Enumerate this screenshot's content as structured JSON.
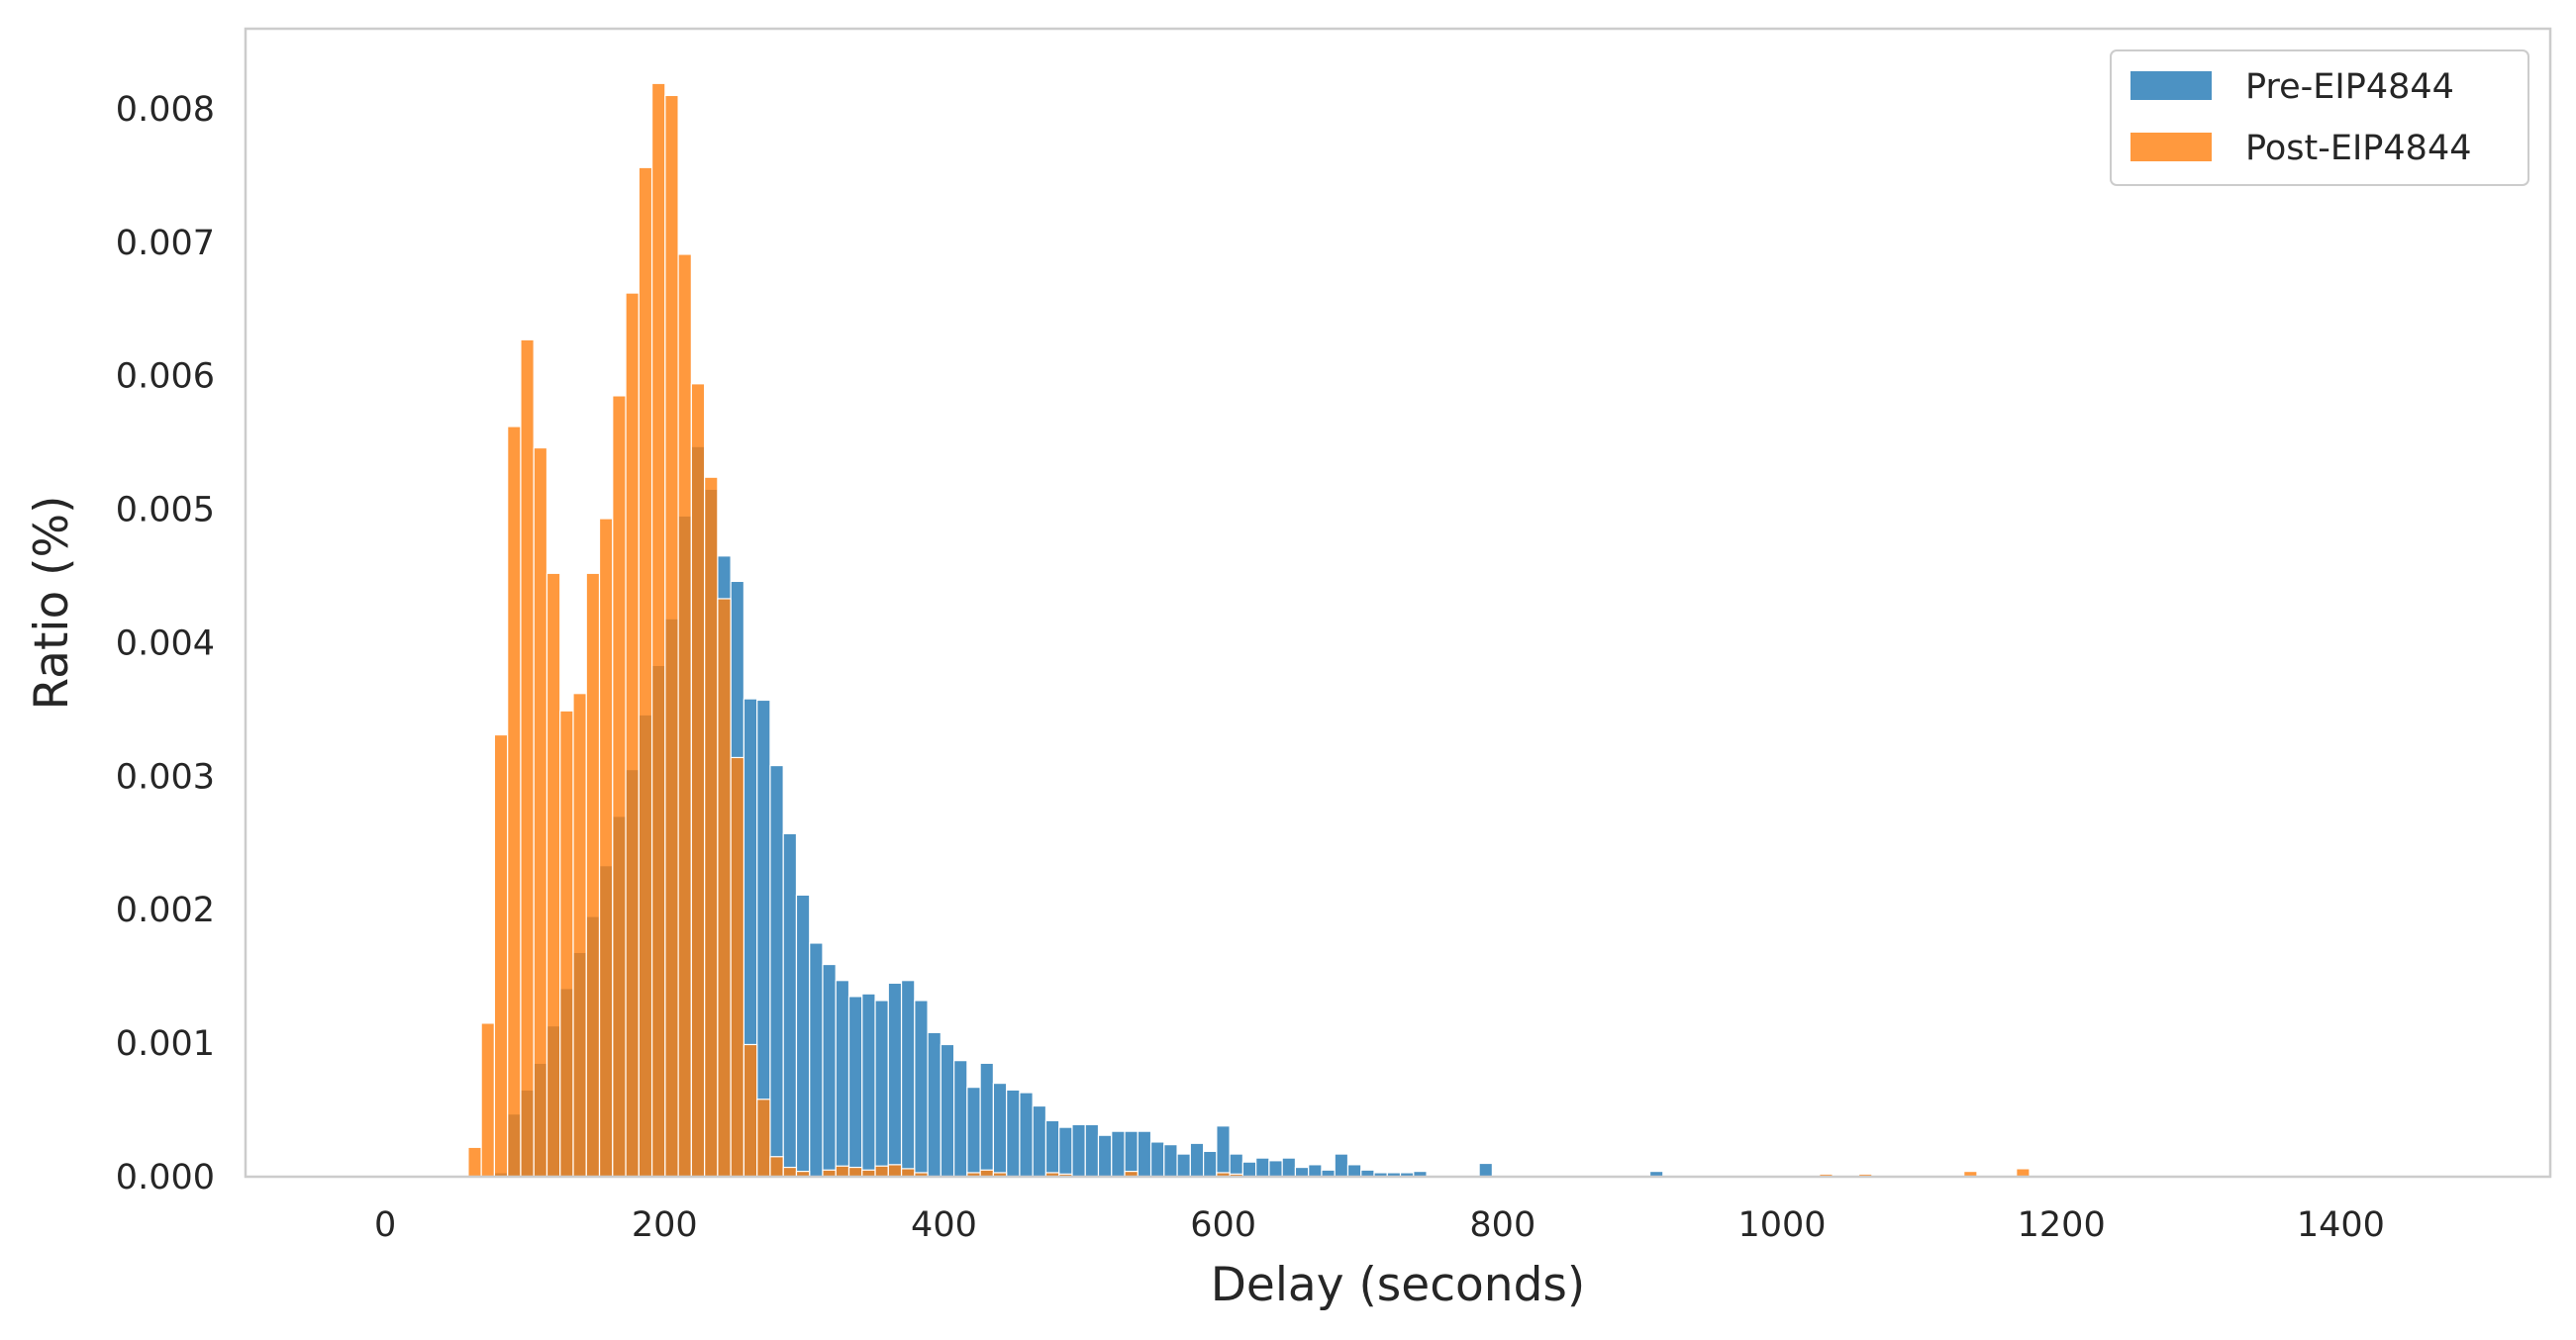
{
  "chart_data": {
    "type": "bar",
    "subtype": "overlapping-histogram",
    "xlabel": "Delay (seconds)",
    "ylabel": "Ratio (%)",
    "xlim": [
      -100,
      1550
    ],
    "ylim": [
      0,
      0.0086
    ],
    "xticks": [
      0,
      200,
      400,
      600,
      800,
      1000,
      1200,
      1400
    ],
    "yticks": [
      0.0,
      0.001,
      0.002,
      0.003,
      0.004,
      0.005,
      0.006,
      0.007,
      0.008
    ],
    "ytick_labels": [
      "0.000",
      "0.001",
      "0.002",
      "0.003",
      "0.004",
      "0.005",
      "0.006",
      "0.007",
      "0.008"
    ],
    "grid": false,
    "legend_position": "top-right",
    "bin_width": 9.4,
    "series": [
      {
        "name": "Pre-EIP4844",
        "color": "#1f77b4",
        "opacity": 0.8,
        "bins": [
          [
            78.2,
            3e-05
          ],
          [
            87.6,
            0.00047
          ],
          [
            97.0,
            0.00065
          ],
          [
            106.4,
            0.00085
          ],
          [
            115.8,
            0.00113
          ],
          [
            125.2,
            0.00141
          ],
          [
            134.6,
            0.00168
          ],
          [
            144.0,
            0.00195
          ],
          [
            153.4,
            0.00233
          ],
          [
            162.8,
            0.0027
          ],
          [
            172.2,
            0.00305
          ],
          [
            181.6,
            0.00346
          ],
          [
            191.0,
            0.00383
          ],
          [
            200.4,
            0.00418
          ],
          [
            209.8,
            0.00495
          ],
          [
            219.2,
            0.00547
          ],
          [
            228.6,
            0.00515
          ],
          [
            238.0,
            0.00465
          ],
          [
            247.4,
            0.00446
          ],
          [
            256.8,
            0.00358
          ],
          [
            266.2,
            0.00357
          ],
          [
            275.6,
            0.00308
          ],
          [
            285.0,
            0.00257
          ],
          [
            294.4,
            0.00211
          ],
          [
            303.8,
            0.00175
          ],
          [
            313.2,
            0.00159
          ],
          [
            322.6,
            0.00147
          ],
          [
            332.0,
            0.00135
          ],
          [
            341.4,
            0.00137
          ],
          [
            350.8,
            0.00132
          ],
          [
            360.2,
            0.00145
          ],
          [
            369.6,
            0.00147
          ],
          [
            379.0,
            0.00132
          ],
          [
            388.4,
            0.00108
          ],
          [
            397.8,
            0.00099
          ],
          [
            407.2,
            0.00087
          ],
          [
            416.6,
            0.00067
          ],
          [
            426.0,
            0.00085
          ],
          [
            435.4,
            0.0007
          ],
          [
            444.8,
            0.00065
          ],
          [
            454.2,
            0.00063
          ],
          [
            463.6,
            0.00053
          ],
          [
            473.0,
            0.00042
          ],
          [
            482.4,
            0.00037
          ],
          [
            491.8,
            0.00039
          ],
          [
            501.2,
            0.00039
          ],
          [
            510.6,
            0.00031
          ],
          [
            520.0,
            0.00034
          ],
          [
            529.4,
            0.00034
          ],
          [
            538.8,
            0.00034
          ],
          [
            548.2,
            0.00026
          ],
          [
            557.6,
            0.00024
          ],
          [
            567.0,
            0.00017
          ],
          [
            576.4,
            0.00025
          ],
          [
            585.8,
            0.00019
          ],
          [
            595.2,
            0.00038
          ],
          [
            604.6,
            0.00017
          ],
          [
            614.0,
            0.00011
          ],
          [
            623.4,
            0.00014
          ],
          [
            632.8,
            0.00012
          ],
          [
            642.2,
            0.00014
          ],
          [
            651.6,
            7e-05
          ],
          [
            661.0,
            9e-05
          ],
          [
            670.4,
            5e-05
          ],
          [
            679.8,
            0.00017
          ],
          [
            689.2,
            9e-05
          ],
          [
            698.6,
            5e-05
          ],
          [
            708.0,
            3e-05
          ],
          [
            717.4,
            3e-05
          ],
          [
            726.8,
            3e-05
          ],
          [
            736.2,
            4e-05
          ],
          [
            783.2,
            0.0001
          ],
          [
            905.4,
            4e-05
          ]
        ]
      },
      {
        "name": "Post-EIP4844",
        "color": "#ff7f0e",
        "opacity": 0.8,
        "bins": [
          [
            59.4,
            0.00022
          ],
          [
            68.8,
            0.00115
          ],
          [
            78.2,
            0.00331
          ],
          [
            87.6,
            0.00562
          ],
          [
            97.0,
            0.00627
          ],
          [
            106.4,
            0.00546
          ],
          [
            115.8,
            0.00452
          ],
          [
            125.2,
            0.00349
          ],
          [
            134.6,
            0.00362
          ],
          [
            144.0,
            0.00452
          ],
          [
            153.4,
            0.00493
          ],
          [
            162.8,
            0.00585
          ],
          [
            172.2,
            0.00662
          ],
          [
            181.6,
            0.00756
          ],
          [
            191.0,
            0.00819
          ],
          [
            200.4,
            0.0081
          ],
          [
            209.8,
            0.00691
          ],
          [
            219.2,
            0.00594
          ],
          [
            228.6,
            0.00524
          ],
          [
            238.0,
            0.00433
          ],
          [
            247.4,
            0.00314
          ],
          [
            256.8,
            0.00099
          ],
          [
            266.2,
            0.00058
          ],
          [
            275.6,
            0.00015
          ],
          [
            285.0,
            7e-05
          ],
          [
            294.4,
            4e-05
          ],
          [
            313.2,
            5e-05
          ],
          [
            322.6,
            8e-05
          ],
          [
            332.0,
            7e-05
          ],
          [
            341.4,
            5e-05
          ],
          [
            350.8,
            8e-05
          ],
          [
            360.2,
            9e-05
          ],
          [
            369.6,
            6e-05
          ],
          [
            379.0,
            3e-05
          ],
          [
            416.6,
            3e-05
          ],
          [
            426.0,
            5e-05
          ],
          [
            435.4,
            3e-05
          ],
          [
            473.0,
            3e-05
          ],
          [
            482.4,
            2e-05
          ],
          [
            529.4,
            4e-05
          ],
          [
            595.2,
            3e-05
          ],
          [
            604.6,
            2e-05
          ],
          [
            1026.8,
            2e-05
          ],
          [
            1055.0,
            2e-05
          ],
          [
            1130.2,
            4e-05
          ],
          [
            1167.8,
            6e-05
          ]
        ]
      }
    ]
  }
}
